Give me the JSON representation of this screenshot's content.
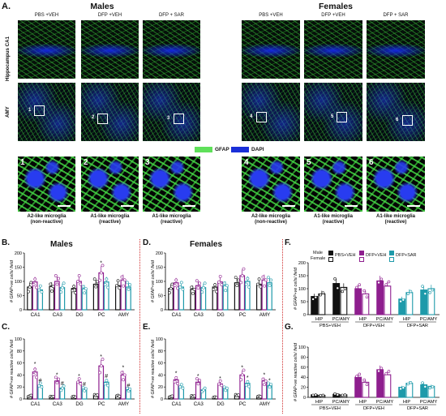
{
  "panel_A": {
    "letter": "A.",
    "males_title": "Males",
    "females_title": "Females",
    "groups": [
      "PBS +VEH",
      "DFP +VEH",
      "DFP + SAR"
    ],
    "row_labels": [
      "Hippocampus CA1",
      "AMY"
    ],
    "box_numbers": [
      "1",
      "2",
      "3",
      "4",
      "5",
      "6"
    ],
    "legend": {
      "gfap": "GFAP",
      "dapi": "DAPI",
      "gfap_color": "#5fe05a",
      "dapi_color": "#1a2fd8"
    },
    "zoom_captions": [
      "A2-like microglia\n(non-reactive)",
      "A1-like microglia\n(reactive)",
      "A1-like microglia\n(reactive)",
      "A2-like microglia\n(non-reactive)",
      "A1-like microglia\n(reactive)",
      "A1-like microglia\n(reactive)"
    ]
  },
  "colors": {
    "pbs": "#111111",
    "dfp": "#8e1e8e",
    "sar": "#1e9aaa",
    "divider": "#d03030",
    "significance": "#111111"
  },
  "panel_labels": {
    "B": "B.",
    "C": "C.",
    "D": "D.",
    "E": "E.",
    "F": "F.",
    "G": "G."
  },
  "titles": {
    "B": "Males",
    "D": "Females"
  },
  "legend_F": {
    "male": "Male",
    "female": "Female",
    "pbs": "PBS+VEH",
    "dfp": "DFP+VEH",
    "sar": "DFP+SAR"
  },
  "chart_data": [
    {
      "id": "B",
      "type": "bar",
      "ylabel": "# GFAP+ve cells/ field",
      "ylim": [
        0,
        200
      ],
      "yticks": [
        0,
        50,
        100,
        150,
        200
      ],
      "categories": [
        "CA1",
        "CA3",
        "DG",
        "PC",
        "AMY"
      ],
      "series": [
        {
          "name": "PBS+VEH",
          "values": [
            80,
            82,
            75,
            90,
            85
          ]
        },
        {
          "name": "DFP+VEH",
          "values": [
            98,
            100,
            100,
            130,
            105
          ]
        },
        {
          "name": "DFP+SAR",
          "values": [
            70,
            78,
            74,
            98,
            80
          ]
        }
      ],
      "marks": {
        "PC": [
          "",
          "*",
          ""
        ]
      }
    },
    {
      "id": "C",
      "type": "bar",
      "ylabel": "# GFAP+ve reactive cells/ field",
      "ylim": [
        0,
        100
      ],
      "yticks": [
        0,
        20,
        40,
        60,
        80,
        100
      ],
      "categories": [
        "CA1",
        "CA3",
        "DG",
        "PC",
        "AMY"
      ],
      "series": [
        {
          "name": "PBS+VEH",
          "values": [
            5,
            4,
            4,
            6,
            5
          ]
        },
        {
          "name": "DFP+VEH",
          "values": [
            45,
            30,
            28,
            55,
            40
          ]
        },
        {
          "name": "DFP+SAR",
          "values": [
            22,
            18,
            17,
            28,
            15
          ]
        }
      ],
      "marks": {
        "CA1": [
          "",
          "*",
          "#"
        ],
        "CA3": [
          "",
          "*",
          "#"
        ],
        "DG": [
          "",
          "*",
          "#"
        ],
        "PC": [
          "",
          "*",
          "#"
        ],
        "AMY": [
          "",
          "*",
          "#"
        ]
      }
    },
    {
      "id": "D",
      "type": "bar",
      "ylabel": "# GFAP+ve cells/ field",
      "ylim": [
        0,
        200
      ],
      "yticks": [
        0,
        50,
        100,
        150,
        200
      ],
      "categories": [
        "CA1",
        "CA3",
        "DG",
        "PC",
        "AMY"
      ],
      "series": [
        {
          "name": "PBS+VEH",
          "values": [
            75,
            72,
            80,
            95,
            90
          ]
        },
        {
          "name": "DFP+VEH",
          "values": [
            95,
            85,
            98,
            120,
            105
          ]
        },
        {
          "name": "DFP+SAR",
          "values": [
            80,
            78,
            85,
            100,
            95
          ]
        }
      ],
      "marks": {}
    },
    {
      "id": "E",
      "type": "bar",
      "ylabel": "# GFAP+ve reactive cells/ field",
      "ylim": [
        0,
        100
      ],
      "yticks": [
        0,
        20,
        40,
        60,
        80,
        100
      ],
      "categories": [
        "CA1",
        "CA3",
        "DG",
        "PC",
        "AMY"
      ],
      "series": [
        {
          "name": "PBS+VEH",
          "values": [
            4,
            5,
            3,
            6,
            4
          ]
        },
        {
          "name": "DFP+VEH",
          "values": [
            32,
            28,
            25,
            40,
            30
          ]
        },
        {
          "name": "DFP+SAR",
          "values": [
            20,
            15,
            18,
            26,
            22
          ]
        }
      ],
      "marks": {
        "CA1": [
          "",
          "*",
          ""
        ],
        "CA3": [
          "",
          "*",
          ""
        ],
        "DG": [
          "",
          "*",
          ""
        ],
        "PC": [
          "",
          "*",
          "*"
        ],
        "AMY": [
          "",
          "*",
          "*"
        ]
      }
    },
    {
      "id": "F",
      "type": "bar",
      "ylabel": "# GFAP+ve cells/ field",
      "ylim": [
        0,
        200
      ],
      "yticks": [
        0,
        50,
        100,
        150,
        200
      ],
      "categories": [
        "HIP",
        "PC/AMY",
        "HIP",
        "PC/AMY",
        "HIP",
        "PC/AMY"
      ],
      "group_labels": [
        "PBS+VEH",
        "DFP+VEH",
        "DFP+SAR"
      ],
      "series": [
        {
          "name": "Male",
          "values": [
            70,
            120,
            100,
            130,
            60,
            95
          ]
        },
        {
          "name": "Female",
          "values": [
            80,
            105,
            80,
            110,
            85,
            100
          ]
        }
      ]
    },
    {
      "id": "G",
      "type": "bar",
      "ylabel": "# GFAP+ve reactive cells/ field",
      "ylim": [
        0,
        100
      ],
      "yticks": [
        0,
        20,
        40,
        60,
        80,
        100
      ],
      "categories": [
        "HIP",
        "PC/AMY",
        "HIP",
        "PC/AMY",
        "HIP",
        "PC/AMY"
      ],
      "group_labels": [
        "PBS+VEH",
        "DFP+VEH",
        "DFP+SAR"
      ],
      "series": [
        {
          "name": "Male",
          "values": [
            5,
            6,
            40,
            55,
            20,
            25
          ]
        },
        {
          "name": "Female",
          "values": [
            4,
            5,
            30,
            45,
            28,
            22
          ]
        }
      ]
    }
  ]
}
